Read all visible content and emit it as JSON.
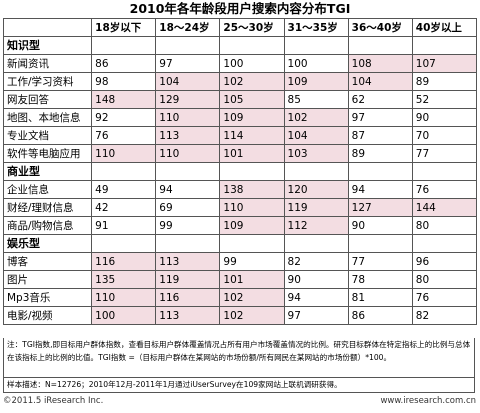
{
  "title": "2010年各年龄段用户搜索内容分布TGI",
  "chart_data": {
    "type": "table",
    "title": "2010年各年龄段用户搜索内容分布TGI",
    "columns": [
      "18岁以下",
      "18～24岁",
      "25～30岁",
      "31～35岁",
      "36～40岁",
      "40岁以上"
    ],
    "groups": [
      {
        "name": "知识型",
        "rows": [
          {
            "label": "新闻资讯",
            "values": [
              86,
              97,
              100,
              100,
              108,
              107
            ],
            "highlight": [
              false,
              false,
              false,
              false,
              true,
              true
            ]
          },
          {
            "label": "工作/学习资料",
            "values": [
              98,
              104,
              102,
              109,
              104,
              89
            ],
            "highlight": [
              false,
              true,
              true,
              true,
              true,
              false
            ]
          },
          {
            "label": "网友回答",
            "values": [
              148,
              129,
              105,
              85,
              62,
              52
            ],
            "highlight": [
              true,
              true,
              true,
              false,
              false,
              false
            ]
          },
          {
            "label": "地图、本地信息",
            "values": [
              92,
              110,
              109,
              102,
              97,
              90
            ],
            "highlight": [
              false,
              true,
              true,
              true,
              false,
              false
            ]
          },
          {
            "label": "专业文档",
            "values": [
              76,
              113,
              114,
              104,
              87,
              70
            ],
            "highlight": [
              false,
              true,
              true,
              true,
              false,
              false
            ]
          },
          {
            "label": "软件等电脑应用",
            "values": [
              110,
              110,
              101,
              103,
              89,
              77
            ],
            "highlight": [
              true,
              true,
              true,
              true,
              false,
              false
            ]
          }
        ]
      },
      {
        "name": "商业型",
        "rows": [
          {
            "label": "企业信息",
            "values": [
              49,
              94,
              138,
              120,
              94,
              76
            ],
            "highlight": [
              false,
              false,
              true,
              true,
              false,
              false
            ]
          },
          {
            "label": "财经/理财信息",
            "values": [
              42,
              69,
              110,
              119,
              127,
              144
            ],
            "highlight": [
              false,
              false,
              true,
              true,
              true,
              true
            ]
          },
          {
            "label": "商品/购物信息",
            "values": [
              91,
              99,
              109,
              112,
              90,
              80
            ],
            "highlight": [
              false,
              false,
              true,
              true,
              false,
              false
            ]
          }
        ]
      },
      {
        "name": "娱乐型",
        "rows": [
          {
            "label": "博客",
            "values": [
              116,
              113,
              99,
              82,
              77,
              96
            ],
            "highlight": [
              true,
              true,
              false,
              false,
              false,
              false
            ]
          },
          {
            "label": "图片",
            "values": [
              135,
              119,
              101,
              90,
              78,
              80
            ],
            "highlight": [
              true,
              true,
              true,
              false,
              false,
              false
            ]
          },
          {
            "label": "Mp3音乐",
            "values": [
              110,
              116,
              102,
              94,
              81,
              76
            ],
            "highlight": [
              true,
              true,
              true,
              false,
              false,
              false
            ]
          },
          {
            "label": "电影/视频",
            "values": [
              100,
              113,
              102,
              97,
              86,
              82
            ],
            "highlight": [
              true,
              true,
              true,
              false,
              false,
              false
            ]
          }
        ]
      }
    ]
  },
  "notes": "注：TGI指数,即目标用户群体指数，查看目标用户群体覆盖情况占所有用户市场覆盖情况的比例。研究目标群体在特定指标上的比例与总体在该指标上的比例的比值。TGI指数 =（目标用户群体在某网站的市场份额/所有网民在某网站的市场份额）*100。",
  "sample": "样本描述：N=12726；2010年12月-2011年1月通过iUserSurvey在109家网站上联机调研获得。",
  "footer": {
    "copyright": "©2011.5 iResearch Inc.",
    "website": "www.iresearch.com.cn"
  },
  "colors": {
    "highlight": "#f3dde2",
    "border": "#555555"
  }
}
